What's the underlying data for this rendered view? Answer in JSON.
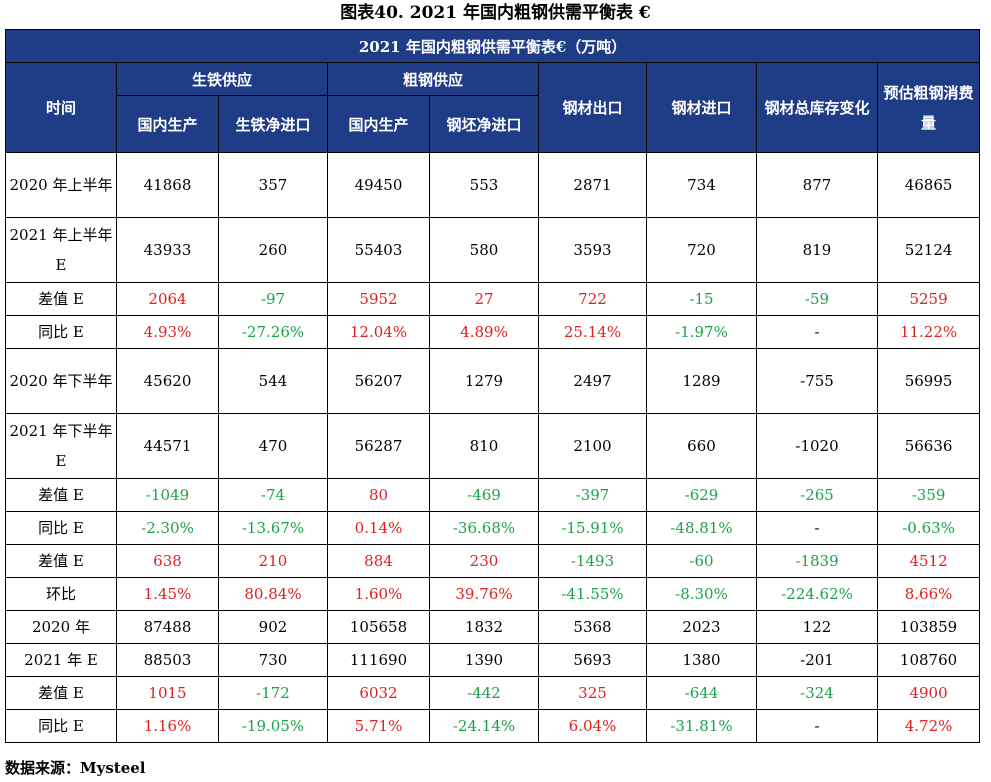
{
  "title": "图表40.  2021 年国内粗钢供需平衡表 €",
  "band": "2021 年国内粗钢供需平衡表€（万吨）",
  "headers": {
    "time": "时间",
    "pig_iron_supply": "生铁供应",
    "crude_steel_supply": "粗钢供应",
    "steel_export": "钢材出口",
    "steel_import": "钢材进口",
    "inventory_change": "钢材总库存变化",
    "est_consumption": "预估粗钢消费量",
    "domestic_output_1": "国内生产",
    "pig_iron_net_import": "生铁净进口",
    "domestic_output_2": "国内生产",
    "billet_net_import": "钢坯净进口"
  },
  "colors": {
    "header_bg": "#1f3d86",
    "positive": "#e02020",
    "negative": "#1aa34a"
  },
  "rows": [
    {
      "period": "2020 年上半年",
      "tall": true,
      "cells": [
        {
          "v": "41868",
          "c": "black"
        },
        {
          "v": "357",
          "c": "black"
        },
        {
          "v": "49450",
          "c": "black"
        },
        {
          "v": "553",
          "c": "black"
        },
        {
          "v": "2871",
          "c": "black"
        },
        {
          "v": "734",
          "c": "black"
        },
        {
          "v": "877",
          "c": "black"
        },
        {
          "v": "46865",
          "c": "black"
        }
      ]
    },
    {
      "period": "2021 年上半年 E",
      "tall": true,
      "cells": [
        {
          "v": "43933",
          "c": "black"
        },
        {
          "v": "260",
          "c": "black"
        },
        {
          "v": "55403",
          "c": "black"
        },
        {
          "v": "580",
          "c": "black"
        },
        {
          "v": "3593",
          "c": "black"
        },
        {
          "v": "720",
          "c": "black"
        },
        {
          "v": "819",
          "c": "black"
        },
        {
          "v": "52124",
          "c": "black"
        }
      ]
    },
    {
      "period": "差值 E",
      "tall": false,
      "cells": [
        {
          "v": "2064",
          "c": "red"
        },
        {
          "v": "-97",
          "c": "green"
        },
        {
          "v": "5952",
          "c": "red"
        },
        {
          "v": "27",
          "c": "red"
        },
        {
          "v": "722",
          "c": "red"
        },
        {
          "v": "-15",
          "c": "green"
        },
        {
          "v": "-59",
          "c": "green"
        },
        {
          "v": "5259",
          "c": "red"
        }
      ]
    },
    {
      "period": "同比 E",
      "tall": false,
      "cells": [
        {
          "v": "4.93%",
          "c": "red"
        },
        {
          "v": "-27.26%",
          "c": "green"
        },
        {
          "v": "12.04%",
          "c": "red"
        },
        {
          "v": "4.89%",
          "c": "red"
        },
        {
          "v": "25.14%",
          "c": "red"
        },
        {
          "v": "-1.97%",
          "c": "green"
        },
        {
          "v": "-",
          "c": "black"
        },
        {
          "v": "11.22%",
          "c": "red"
        }
      ]
    },
    {
      "period": "2020 年下半年",
      "tall": true,
      "cells": [
        {
          "v": "45620",
          "c": "black"
        },
        {
          "v": "544",
          "c": "black"
        },
        {
          "v": "56207",
          "c": "black"
        },
        {
          "v": "1279",
          "c": "black"
        },
        {
          "v": "2497",
          "c": "black"
        },
        {
          "v": "1289",
          "c": "black"
        },
        {
          "v": "-755",
          "c": "black"
        },
        {
          "v": "56995",
          "c": "black"
        }
      ]
    },
    {
      "period": "2021 年下半年 E",
      "tall": true,
      "cells": [
        {
          "v": "44571",
          "c": "black"
        },
        {
          "v": "470",
          "c": "black"
        },
        {
          "v": "56287",
          "c": "black"
        },
        {
          "v": "810",
          "c": "black"
        },
        {
          "v": "2100",
          "c": "black"
        },
        {
          "v": "660",
          "c": "black"
        },
        {
          "v": "-1020",
          "c": "black"
        },
        {
          "v": "56636",
          "c": "black"
        }
      ]
    },
    {
      "period": "差值 E",
      "tall": false,
      "cells": [
        {
          "v": "-1049",
          "c": "green"
        },
        {
          "v": "-74",
          "c": "green"
        },
        {
          "v": "80",
          "c": "red"
        },
        {
          "v": "-469",
          "c": "green"
        },
        {
          "v": "-397",
          "c": "green"
        },
        {
          "v": "-629",
          "c": "green"
        },
        {
          "v": "-265",
          "c": "green"
        },
        {
          "v": "-359",
          "c": "green"
        }
      ]
    },
    {
      "period": "同比 E",
      "tall": false,
      "cells": [
        {
          "v": "-2.30%",
          "c": "green"
        },
        {
          "v": "-13.67%",
          "c": "green"
        },
        {
          "v": "0.14%",
          "c": "red"
        },
        {
          "v": "-36.68%",
          "c": "green"
        },
        {
          "v": "-15.91%",
          "c": "green"
        },
        {
          "v": "-48.81%",
          "c": "green"
        },
        {
          "v": "-",
          "c": "black"
        },
        {
          "v": "-0.63%",
          "c": "green"
        }
      ]
    },
    {
      "period": "差值 E",
      "tall": false,
      "cells": [
        {
          "v": "638",
          "c": "red"
        },
        {
          "v": "210",
          "c": "red"
        },
        {
          "v": "884",
          "c": "red"
        },
        {
          "v": "230",
          "c": "red"
        },
        {
          "v": "-1493",
          "c": "green"
        },
        {
          "v": "-60",
          "c": "green"
        },
        {
          "v": "-1839",
          "c": "green"
        },
        {
          "v": "4512",
          "c": "red"
        }
      ]
    },
    {
      "period": "环比",
      "tall": false,
      "cells": [
        {
          "v": "1.45%",
          "c": "red"
        },
        {
          "v": "80.84%",
          "c": "red"
        },
        {
          "v": "1.60%",
          "c": "red"
        },
        {
          "v": "39.76%",
          "c": "red"
        },
        {
          "v": "-41.55%",
          "c": "green"
        },
        {
          "v": "-8.30%",
          "c": "green"
        },
        {
          "v": "-224.62%",
          "c": "green"
        },
        {
          "v": "8.66%",
          "c": "red"
        }
      ]
    },
    {
      "period": "2020 年",
      "tall": false,
      "cells": [
        {
          "v": "87488",
          "c": "black"
        },
        {
          "v": "902",
          "c": "black"
        },
        {
          "v": "105658",
          "c": "black"
        },
        {
          "v": "1832",
          "c": "black"
        },
        {
          "v": "5368",
          "c": "black"
        },
        {
          "v": "2023",
          "c": "black"
        },
        {
          "v": "122",
          "c": "black"
        },
        {
          "v": "103859",
          "c": "black"
        }
      ]
    },
    {
      "period": "2021 年 E",
      "tall": false,
      "cells": [
        {
          "v": "88503",
          "c": "black"
        },
        {
          "v": "730",
          "c": "black"
        },
        {
          "v": "111690",
          "c": "black"
        },
        {
          "v": "1390",
          "c": "black"
        },
        {
          "v": "5693",
          "c": "black"
        },
        {
          "v": "1380",
          "c": "black"
        },
        {
          "v": "-201",
          "c": "black"
        },
        {
          "v": "108760",
          "c": "black"
        }
      ]
    },
    {
      "period": "差值 E",
      "tall": false,
      "cells": [
        {
          "v": "1015",
          "c": "red"
        },
        {
          "v": "-172",
          "c": "green"
        },
        {
          "v": "6032",
          "c": "red"
        },
        {
          "v": "-442",
          "c": "green"
        },
        {
          "v": "325",
          "c": "red"
        },
        {
          "v": "-644",
          "c": "green"
        },
        {
          "v": "-324",
          "c": "green"
        },
        {
          "v": "4900",
          "c": "red"
        }
      ]
    },
    {
      "period": "同比 E",
      "tall": false,
      "cells": [
        {
          "v": "1.16%",
          "c": "red"
        },
        {
          "v": "-19.05%",
          "c": "green"
        },
        {
          "v": "5.71%",
          "c": "red"
        },
        {
          "v": "-24.14%",
          "c": "green"
        },
        {
          "v": "6.04%",
          "c": "red"
        },
        {
          "v": "-31.81%",
          "c": "green"
        },
        {
          "v": "-",
          "c": "black"
        },
        {
          "v": "4.72%",
          "c": "red"
        }
      ]
    }
  ],
  "source": "数据来源：Mysteel"
}
